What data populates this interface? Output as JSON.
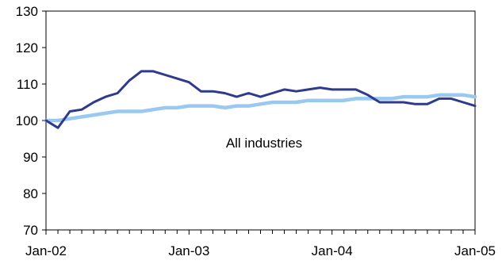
{
  "chart_data": {
    "type": "line",
    "title": "",
    "xlabel": "",
    "ylabel": "",
    "ylim": [
      70,
      130
    ],
    "yticks": [
      70,
      80,
      90,
      100,
      110,
      120,
      130
    ],
    "xlim": [
      "2002-01",
      "2005-01"
    ],
    "xticks": [
      "Jan-02",
      "Jan-03",
      "Jan-04",
      "Jan-05"
    ],
    "grid": false,
    "annotation": "All industries",
    "series": [
      {
        "color": "#2e3a8c",
        "x": [
          "2002-01",
          "2002-02",
          "2002-03",
          "2002-04",
          "2002-05",
          "2002-06",
          "2002-07",
          "2002-08",
          "2002-09",
          "2002-10",
          "2002-11",
          "2002-12",
          "2003-01",
          "2003-02",
          "2003-03",
          "2003-04",
          "2003-05",
          "2003-06",
          "2003-07",
          "2003-08",
          "2003-09",
          "2003-10",
          "2003-11",
          "2003-12",
          "2004-01",
          "2004-02",
          "2004-03",
          "2004-04",
          "2004-05",
          "2004-06",
          "2004-07",
          "2004-08",
          "2004-09",
          "2004-10",
          "2004-11",
          "2004-12",
          "2005-01"
        ],
        "values": [
          100,
          98,
          102.5,
          103,
          105,
          106.5,
          107.5,
          111,
          113.5,
          113.5,
          112.5,
          111.5,
          110.5,
          108,
          108,
          107.5,
          106.5,
          107.5,
          106.5,
          107.5,
          108.5,
          108,
          108.5,
          109,
          108.5,
          108.5,
          108.5,
          107,
          105,
          105,
          105,
          104.5,
          104.5,
          106,
          106,
          105,
          104
        ]
      },
      {
        "color": "#99c9f0",
        "x": [
          "2002-01",
          "2002-02",
          "2002-03",
          "2002-04",
          "2002-05",
          "2002-06",
          "2002-07",
          "2002-08",
          "2002-09",
          "2002-10",
          "2002-11",
          "2002-12",
          "2003-01",
          "2003-02",
          "2003-03",
          "2003-04",
          "2003-05",
          "2003-06",
          "2003-07",
          "2003-08",
          "2003-09",
          "2003-10",
          "2003-11",
          "2003-12",
          "2004-01",
          "2004-02",
          "2004-03",
          "2004-04",
          "2004-05",
          "2004-06",
          "2004-07",
          "2004-08",
          "2004-09",
          "2004-10",
          "2004-11",
          "2004-12",
          "2005-01"
        ],
        "values": [
          100,
          100,
          100.5,
          101,
          101.5,
          102,
          102.5,
          102.5,
          102.5,
          103,
          103.5,
          103.5,
          104,
          104,
          104,
          103.5,
          104,
          104,
          104.5,
          105,
          105,
          105,
          105.5,
          105.5,
          105.5,
          105.5,
          106,
          106,
          106,
          106,
          106.5,
          106.5,
          106.5,
          107,
          107,
          107,
          106.5
        ]
      }
    ]
  }
}
